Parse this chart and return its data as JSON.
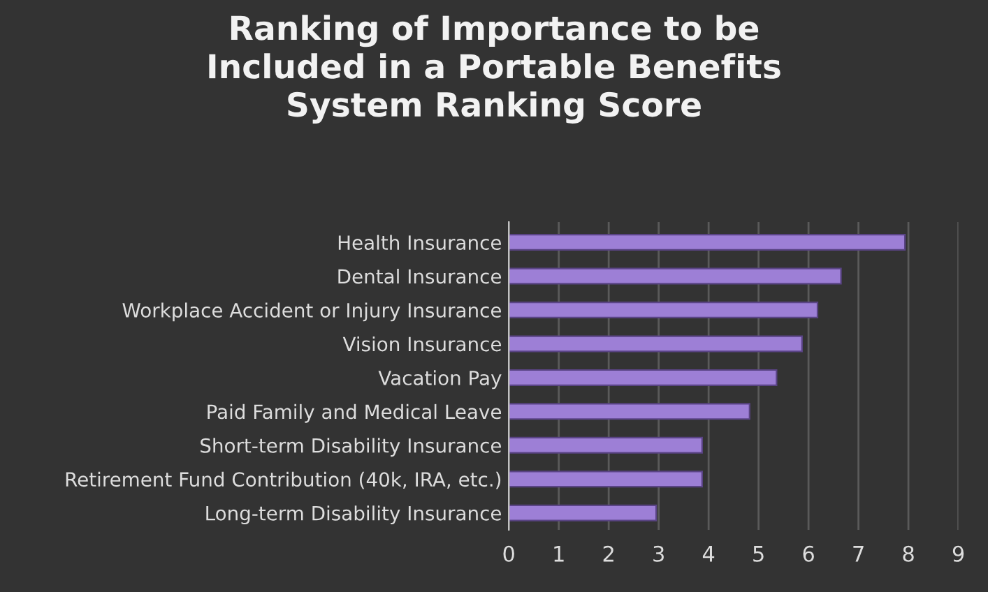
{
  "chart_data": {
    "type": "bar",
    "orientation": "horizontal",
    "title": "Ranking of Importance to be\nIncluded in a Portable Benefits\nSystem Ranking Score",
    "categories": [
      "Health Insurance",
      "Dental Insurance",
      "Workplace Accident or Injury Insurance",
      "Vision Insurance",
      "Vacation Pay",
      "Paid Family and Medical Leave",
      "Short-term Disability Insurance",
      "Retirement Fund Contribution (40k, IRA, etc.)",
      "Long-term Disability Insurance"
    ],
    "values": [
      7.93,
      6.65,
      6.18,
      5.87,
      5.36,
      4.82,
      3.87,
      3.87,
      2.95
    ],
    "color": "#9d7fd6",
    "xlim": [
      0,
      9
    ],
    "xticks": [
      0,
      1,
      2,
      3,
      4,
      5,
      6,
      7,
      8,
      9
    ],
    "grid": "x",
    "legend": false
  }
}
